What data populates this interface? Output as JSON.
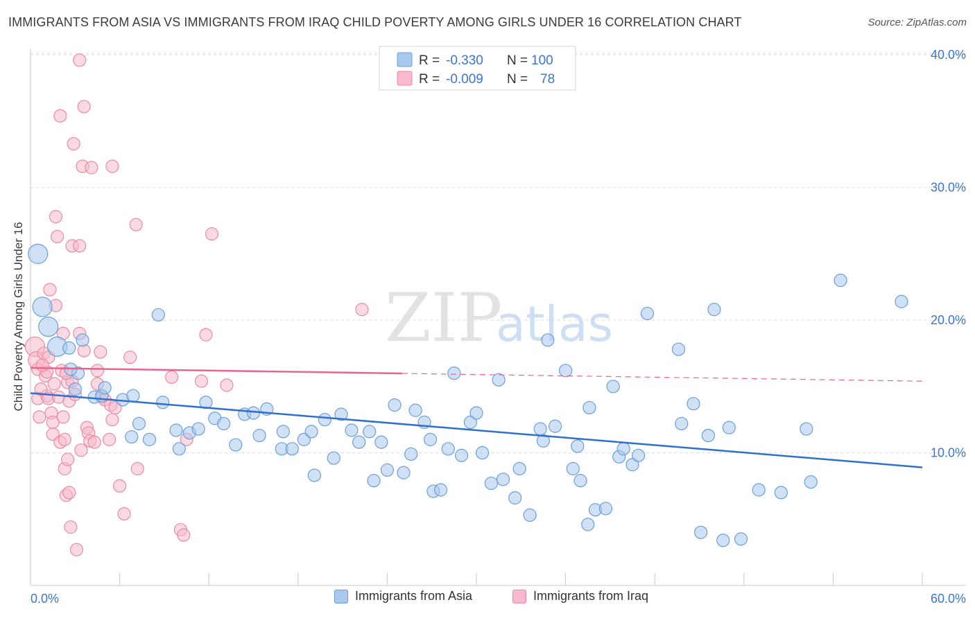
{
  "title": "IMMIGRANTS FROM ASIA VS IMMIGRANTS FROM IRAQ CHILD POVERTY AMONG GIRLS UNDER 16 CORRELATION CHART",
  "source": "Source: ZipAtlas.com",
  "watermark": {
    "zip": "ZIP",
    "atlas": "atlas"
  },
  "colors": {
    "asia_fill": "#a9c8ee",
    "asia_stroke": "#6a9fd8",
    "asia_line": "#2f6fcf",
    "iraq_fill": "#f7b9cb",
    "iraq_stroke": "#ea8aa6",
    "iraq_line": "#e8648f",
    "tick": "#3b76c9",
    "grid": "#dcdcdc"
  },
  "legend": {
    "rows": [
      {
        "r_label": "R = ",
        "r_value": "-0.330",
        "n_label": "N = ",
        "n_value": "100"
      },
      {
        "r_label": "R = ",
        "r_value": "-0.009",
        "n_label": "N = ",
        "n_value": "78"
      }
    ]
  },
  "chart_data": {
    "type": "scatter",
    "title": "IMMIGRANTS FROM ASIA VS IMMIGRANTS FROM IRAQ CHILD POVERTY AMONG GIRLS UNDER 16 CORRELATION CHART",
    "xlabel": "",
    "ylabel": "Child Poverty Among Girls Under 16",
    "xlim": [
      0,
      60
    ],
    "ylim": [
      0,
      41
    ],
    "x_tick_labels": [
      "0.0%",
      "60.0%"
    ],
    "y_ticks": [
      10,
      20,
      30,
      40
    ],
    "y_tick_labels": [
      "10.0%",
      "20.0%",
      "30.0%",
      "40.0%"
    ],
    "series": [
      {
        "name": "Immigrants from Asia",
        "trend": {
          "x": [
            0,
            60
          ],
          "y": [
            14.5,
            8.9
          ],
          "dashed_from": null
        },
        "points": [
          {
            "x": 0.5,
            "y": 25.0,
            "s": "l"
          },
          {
            "x": 0.8,
            "y": 21.0,
            "s": "l"
          },
          {
            "x": 1.2,
            "y": 19.5,
            "s": "l"
          },
          {
            "x": 1.8,
            "y": 18.0,
            "s": "l"
          },
          {
            "x": 3.5,
            "y": 18.5
          },
          {
            "x": 3.2,
            "y": 16.0
          },
          {
            "x": 2.7,
            "y": 16.3
          },
          {
            "x": 4.3,
            "y": 14.2
          },
          {
            "x": 4.8,
            "y": 14.3
          },
          {
            "x": 3.0,
            "y": 14.8
          },
          {
            "x": 6.2,
            "y": 14.0
          },
          {
            "x": 6.9,
            "y": 14.3
          },
          {
            "x": 7.3,
            "y": 12.2
          },
          {
            "x": 6.8,
            "y": 11.2
          },
          {
            "x": 8.0,
            "y": 11.0
          },
          {
            "x": 8.9,
            "y": 13.8
          },
          {
            "x": 9.8,
            "y": 11.7
          },
          {
            "x": 10.7,
            "y": 11.5
          },
          {
            "x": 11.3,
            "y": 11.8
          },
          {
            "x": 11.8,
            "y": 13.8
          },
          {
            "x": 12.4,
            "y": 12.6
          },
          {
            "x": 13.0,
            "y": 12.2
          },
          {
            "x": 13.8,
            "y": 10.6
          },
          {
            "x": 14.4,
            "y": 12.9
          },
          {
            "x": 15.0,
            "y": 13.0
          },
          {
            "x": 15.4,
            "y": 11.3
          },
          {
            "x": 15.9,
            "y": 13.3
          },
          {
            "x": 16.9,
            "y": 10.3
          },
          {
            "x": 17.0,
            "y": 11.6
          },
          {
            "x": 17.6,
            "y": 10.3
          },
          {
            "x": 18.4,
            "y": 11.0
          },
          {
            "x": 18.9,
            "y": 11.6
          },
          {
            "x": 19.8,
            "y": 12.5
          },
          {
            "x": 20.9,
            "y": 12.9
          },
          {
            "x": 20.4,
            "y": 9.6
          },
          {
            "x": 19.1,
            "y": 8.3
          },
          {
            "x": 21.6,
            "y": 11.7
          },
          {
            "x": 22.1,
            "y": 10.8
          },
          {
            "x": 22.8,
            "y": 11.6
          },
          {
            "x": 23.6,
            "y": 10.8
          },
          {
            "x": 23.1,
            "y": 7.9
          },
          {
            "x": 24.0,
            "y": 8.7
          },
          {
            "x": 24.5,
            "y": 13.6
          },
          {
            "x": 25.1,
            "y": 8.5
          },
          {
            "x": 25.6,
            "y": 9.9
          },
          {
            "x": 25.9,
            "y": 13.2
          },
          {
            "x": 26.5,
            "y": 12.3
          },
          {
            "x": 26.9,
            "y": 11.0
          },
          {
            "x": 27.1,
            "y": 7.1
          },
          {
            "x": 27.6,
            "y": 7.2
          },
          {
            "x": 28.1,
            "y": 10.3
          },
          {
            "x": 28.5,
            "y": 16.0
          },
          {
            "x": 29.0,
            "y": 9.8
          },
          {
            "x": 29.6,
            "y": 12.3
          },
          {
            "x": 30.0,
            "y": 13.0
          },
          {
            "x": 30.4,
            "y": 10.0
          },
          {
            "x": 31.0,
            "y": 7.7
          },
          {
            "x": 31.5,
            "y": 15.5
          },
          {
            "x": 31.8,
            "y": 8.0
          },
          {
            "x": 32.6,
            "y": 6.6
          },
          {
            "x": 32.9,
            "y": 8.8
          },
          {
            "x": 33.6,
            "y": 5.3
          },
          {
            "x": 34.3,
            "y": 11.8
          },
          {
            "x": 34.5,
            "y": 10.9
          },
          {
            "x": 34.8,
            "y": 18.5
          },
          {
            "x": 35.3,
            "y": 12.0
          },
          {
            "x": 36.0,
            "y": 16.2
          },
          {
            "x": 36.5,
            "y": 8.8
          },
          {
            "x": 36.8,
            "y": 10.5
          },
          {
            "x": 37.0,
            "y": 7.9
          },
          {
            "x": 37.6,
            "y": 13.4
          },
          {
            "x": 37.5,
            "y": 4.6
          },
          {
            "x": 38.0,
            "y": 5.7
          },
          {
            "x": 38.7,
            "y": 5.8
          },
          {
            "x": 39.2,
            "y": 15.0
          },
          {
            "x": 39.6,
            "y": 9.7
          },
          {
            "x": 39.9,
            "y": 10.3
          },
          {
            "x": 40.5,
            "y": 9.1
          },
          {
            "x": 40.9,
            "y": 9.8
          },
          {
            "x": 41.5,
            "y": 20.5
          },
          {
            "x": 43.6,
            "y": 17.8
          },
          {
            "x": 43.8,
            "y": 12.2
          },
          {
            "x": 44.6,
            "y": 13.7
          },
          {
            "x": 45.1,
            "y": 4.0
          },
          {
            "x": 45.6,
            "y": 11.3
          },
          {
            "x": 46.0,
            "y": 20.8
          },
          {
            "x": 46.6,
            "y": 3.4
          },
          {
            "x": 47.0,
            "y": 11.9
          },
          {
            "x": 47.8,
            "y": 3.5
          },
          {
            "x": 49.0,
            "y": 7.2
          },
          {
            "x": 50.5,
            "y": 7.0
          },
          {
            "x": 52.2,
            "y": 11.8
          },
          {
            "x": 52.5,
            "y": 7.8
          },
          {
            "x": 54.5,
            "y": 23.0
          },
          {
            "x": 58.6,
            "y": 21.4
          },
          {
            "x": 8.6,
            "y": 20.4
          },
          {
            "x": 2.6,
            "y": 17.9
          },
          {
            "x": 5.0,
            "y": 14.9
          },
          {
            "x": 10.0,
            "y": 10.3
          }
        ]
      },
      {
        "name": "Immigrants from Iraq",
        "trend": {
          "x": [
            0,
            60
          ],
          "y": [
            16.4,
            15.4
          ],
          "dashed_from": 25
        },
        "points": [
          {
            "x": 0.3,
            "y": 18.0,
            "s": "l"
          },
          {
            "x": 0.4,
            "y": 17.0,
            "s": "m"
          },
          {
            "x": 0.5,
            "y": 16.3
          },
          {
            "x": 0.5,
            "y": 14.1
          },
          {
            "x": 0.6,
            "y": 12.7
          },
          {
            "x": 0.9,
            "y": 17.5
          },
          {
            "x": 1.0,
            "y": 15.8
          },
          {
            "x": 1.1,
            "y": 16.1
          },
          {
            "x": 1.1,
            "y": 14.3
          },
          {
            "x": 1.2,
            "y": 14.1
          },
          {
            "x": 1.3,
            "y": 22.3
          },
          {
            "x": 1.4,
            "y": 13.0
          },
          {
            "x": 1.5,
            "y": 11.4
          },
          {
            "x": 1.5,
            "y": 12.3
          },
          {
            "x": 1.6,
            "y": 15.2
          },
          {
            "x": 1.7,
            "y": 21.1
          },
          {
            "x": 1.7,
            "y": 27.8
          },
          {
            "x": 1.8,
            "y": 26.3
          },
          {
            "x": 1.9,
            "y": 14.2
          },
          {
            "x": 2.0,
            "y": 10.8
          },
          {
            "x": 2.0,
            "y": 35.4
          },
          {
            "x": 2.1,
            "y": 16.2
          },
          {
            "x": 2.2,
            "y": 19.0
          },
          {
            "x": 2.2,
            "y": 12.7
          },
          {
            "x": 2.3,
            "y": 11.0
          },
          {
            "x": 2.3,
            "y": 8.8
          },
          {
            "x": 2.4,
            "y": 6.8
          },
          {
            "x": 2.5,
            "y": 15.3
          },
          {
            "x": 2.5,
            "y": 9.5
          },
          {
            "x": 2.6,
            "y": 13.9
          },
          {
            "x": 2.6,
            "y": 7.0
          },
          {
            "x": 2.7,
            "y": 4.4
          },
          {
            "x": 2.8,
            "y": 25.6
          },
          {
            "x": 2.8,
            "y": 15.4
          },
          {
            "x": 2.9,
            "y": 33.3
          },
          {
            "x": 3.0,
            "y": 14.4
          },
          {
            "x": 3.1,
            "y": 2.7
          },
          {
            "x": 3.3,
            "y": 19.0
          },
          {
            "x": 3.3,
            "y": 25.6
          },
          {
            "x": 3.4,
            "y": 10.2
          },
          {
            "x": 3.5,
            "y": 31.6
          },
          {
            "x": 3.6,
            "y": 36.1
          },
          {
            "x": 3.6,
            "y": 17.7
          },
          {
            "x": 3.8,
            "y": 11.9
          },
          {
            "x": 3.9,
            "y": 11.5
          },
          {
            "x": 4.0,
            "y": 10.9
          },
          {
            "x": 4.1,
            "y": 31.5
          },
          {
            "x": 4.3,
            "y": 10.8
          },
          {
            "x": 4.5,
            "y": 16.2
          },
          {
            "x": 4.5,
            "y": 15.2
          },
          {
            "x": 4.7,
            "y": 17.6
          },
          {
            "x": 4.8,
            "y": 14.2
          },
          {
            "x": 5.0,
            "y": 14.0
          },
          {
            "x": 5.3,
            "y": 11.0
          },
          {
            "x": 5.5,
            "y": 31.6
          },
          {
            "x": 5.5,
            "y": 12.5
          },
          {
            "x": 5.4,
            "y": 13.6
          },
          {
            "x": 5.7,
            "y": 13.4
          },
          {
            "x": 6.0,
            "y": 7.5
          },
          {
            "x": 6.3,
            "y": 5.4
          },
          {
            "x": 6.7,
            "y": 17.2
          },
          {
            "x": 7.1,
            "y": 27.2
          },
          {
            "x": 7.2,
            "y": 8.8
          },
          {
            "x": 9.5,
            "y": 15.7
          },
          {
            "x": 10.1,
            "y": 4.2
          },
          {
            "x": 10.3,
            "y": 3.8
          },
          {
            "x": 10.5,
            "y": 11.0
          },
          {
            "x": 11.5,
            "y": 15.4
          },
          {
            "x": 11.8,
            "y": 18.9
          },
          {
            "x": 12.2,
            "y": 26.5
          },
          {
            "x": 13.2,
            "y": 15.1
          },
          {
            "x": 22.3,
            "y": 20.8
          },
          {
            "x": 3.3,
            "y": 39.6
          },
          {
            "x": 1.2,
            "y": 17.2
          },
          {
            "x": 0.8,
            "y": 16.6
          },
          {
            "x": 2.4,
            "y": 16.0
          },
          {
            "x": 0.7,
            "y": 14.8
          }
        ]
      }
    ]
  }
}
